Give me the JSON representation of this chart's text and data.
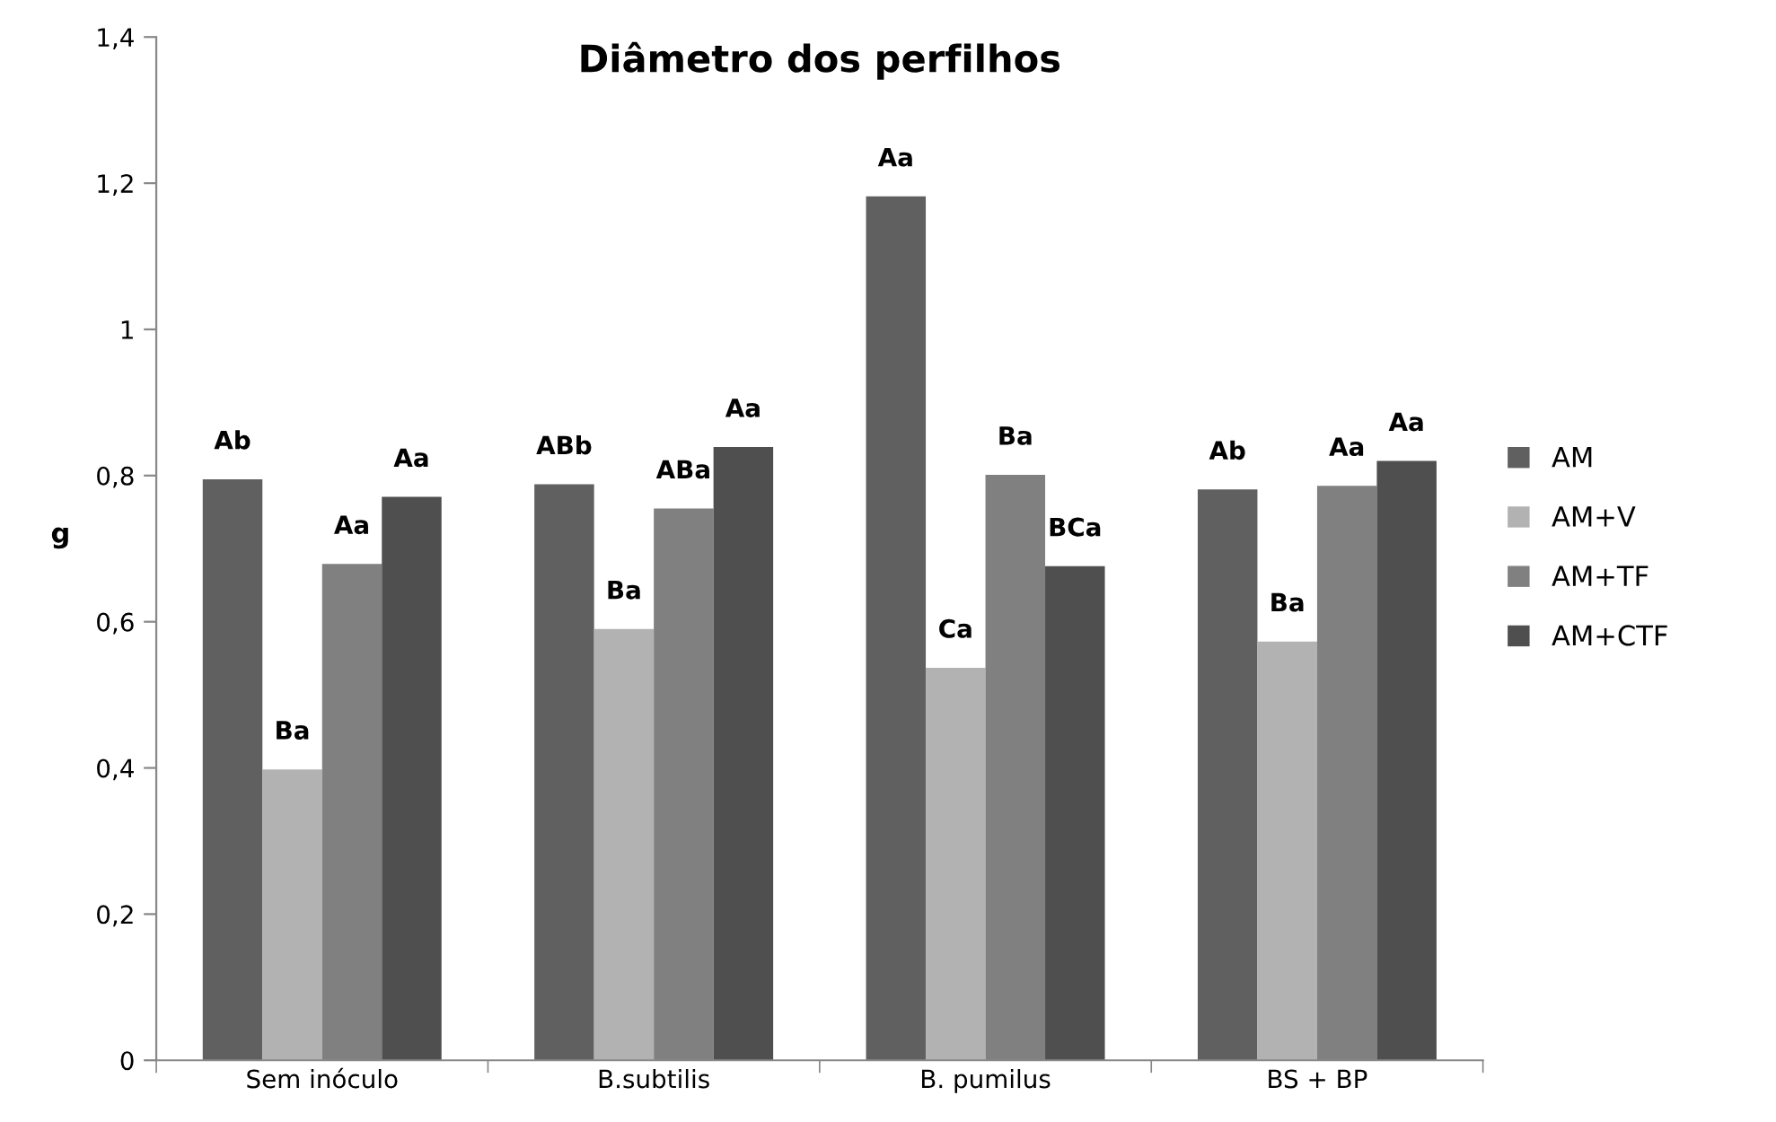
{
  "chart_data": {
    "type": "bar",
    "title": "Diâmetro dos perfilhos",
    "ylabel": "g",
    "categories": [
      "Sem inóculo",
      "B.subtilis",
      "B. pumilus",
      "BS + BP"
    ],
    "series": [
      {
        "name": "AM",
        "color": "#606060",
        "values": [
          0.795,
          0.788,
          1.182,
          0.781
        ],
        "value_labels": [
          "Ab",
          "ABb",
          "Aa",
          "Ab"
        ]
      },
      {
        "name": "AM+V",
        "color": "#b2b2b2",
        "values": [
          0.398,
          0.59,
          0.537,
          0.573
        ],
        "value_labels": [
          "Ba",
          "Ba",
          "Ca",
          "Ba"
        ]
      },
      {
        "name": "AM+TF",
        "color": "#808080",
        "values": [
          0.679,
          0.755,
          0.801,
          0.786
        ],
        "value_labels": [
          "Aa",
          "ABa",
          "Ba",
          "Aa"
        ]
      },
      {
        "name": "AM+CTF",
        "color": "#4f4f4f",
        "values": [
          0.771,
          0.839,
          0.676,
          0.82
        ],
        "value_labels": [
          "Aa",
          "Aa",
          "BCa",
          "Aa"
        ]
      }
    ],
    "ylim": [
      0,
      1.4
    ],
    "yticks": [
      {
        "value": 0,
        "label": "0"
      },
      {
        "value": 0.2,
        "label": "0,2"
      },
      {
        "value": 0.4,
        "label": "0,4"
      },
      {
        "value": 0.6,
        "label": "0,6"
      },
      {
        "value": 0.8,
        "label": "0,8"
      },
      {
        "value": 1,
        "label": "1"
      },
      {
        "value": 1.2,
        "label": "1,2"
      },
      {
        "value": 1.4,
        "label": "1,4"
      }
    ],
    "grid": false,
    "legend": "right"
  }
}
